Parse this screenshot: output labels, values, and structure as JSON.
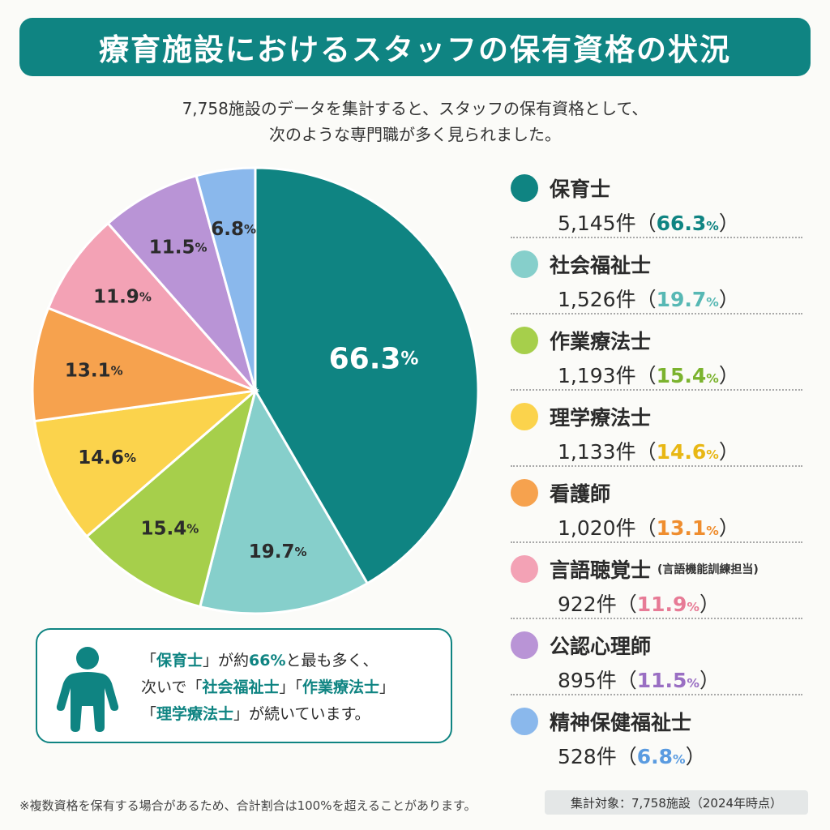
{
  "title": "療育施設におけるスタッフの保有資格の状況",
  "subtitle_lines": [
    "7,758施設のデータを集計すると、スタッフの保有資格として、",
    "次のような専門職が多く見られました。"
  ],
  "chart_data": {
    "type": "pie",
    "slices": [
      {
        "name": "保育士",
        "count": "5,145件",
        "value": 66.3,
        "color": "#0f8482",
        "label_color": "#ffffff"
      },
      {
        "name": "社会福祉士",
        "count": "1,526件",
        "value": 19.7,
        "color": "#86cfcb",
        "label_color": "#2b2b2b"
      },
      {
        "name": "作業療法士",
        "count": "1,193件",
        "value": 15.4,
        "color": "#a6cf4b",
        "label_color": "#2b2b2b"
      },
      {
        "name": "理学療法士",
        "count": "1,133件",
        "value": 14.6,
        "color": "#fbd34c",
        "label_color": "#2b2b2b"
      },
      {
        "name": "看護師",
        "count": "1,020件",
        "value": 13.1,
        "color": "#f6a24e",
        "label_color": "#2b2b2b"
      },
      {
        "name": "言語聴覚士",
        "note": "(言語機能訓練担当)",
        "count": "922件",
        "value": 11.9,
        "color": "#f3a2b5",
        "label_color": "#2b2b2b"
      },
      {
        "name": "公認心理師",
        "count": "895件",
        "value": 11.5,
        "color": "#b994d6",
        "label_color": "#2b2b2b"
      },
      {
        "name": "精神保健福祉士",
        "count": "528件",
        "value": 6.8,
        "color": "#8ab8ec",
        "label_color": "#2b2b2b"
      }
    ],
    "pct_colors": [
      "#0f8482",
      "#57b8b4",
      "#7bb32e",
      "#e8b714",
      "#ef8d2e",
      "#e77b96",
      "#9a6fc3",
      "#5a9be0"
    ]
  },
  "note": {
    "line1": [
      "「",
      "保育士",
      "」が約",
      "66%",
      "と最も多く、"
    ],
    "line2": [
      "次いで「",
      "社会福祉士",
      "」「",
      "作業療法士",
      "」"
    ],
    "line3": [
      "「",
      "理学療法士",
      "」が続いています。"
    ]
  },
  "footnote": "※複数資格を保有する場合があるため、合計割合は100%を超えることがあります。",
  "footnote_right": "集計対象：7,758施設（2024年時点）"
}
